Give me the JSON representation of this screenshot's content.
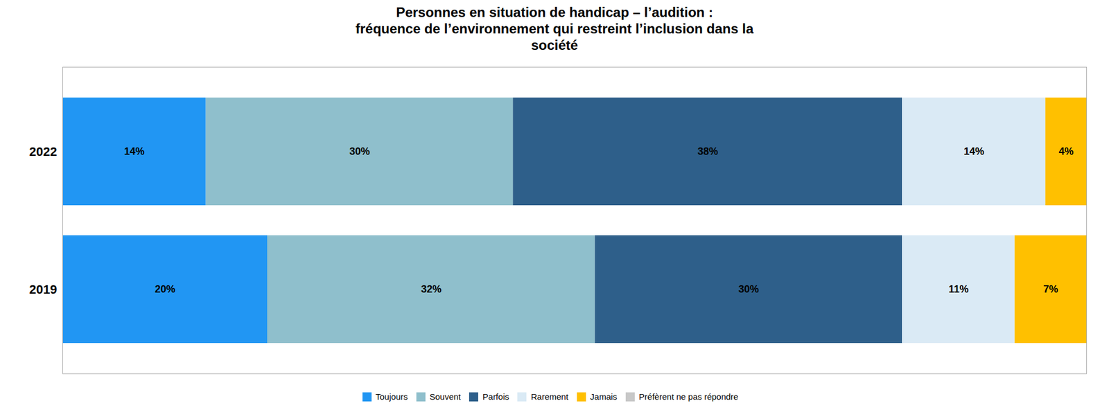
{
  "chart_data": {
    "type": "bar",
    "orientation": "horizontal",
    "stacked": true,
    "title": "Personnes en situation de handicap – l’audition :\nfréquence de l’environnement qui restreint l’inclusion dans la\nsociété",
    "categories": [
      "2022",
      "2019"
    ],
    "series": [
      {
        "name": "Toujours",
        "color": "#2196F3",
        "values": [
          14,
          20
        ],
        "value_labels": [
          "14%",
          "20%"
        ]
      },
      {
        "name": "Souvent",
        "color": "#8FBFCC",
        "values": [
          30,
          32
        ],
        "value_labels": [
          "30%",
          "32%"
        ]
      },
      {
        "name": "Parfois",
        "color": "#2E5F8A",
        "values": [
          38,
          30
        ],
        "value_labels": [
          "38%",
          "30%"
        ]
      },
      {
        "name": "Rarement",
        "color": "#DAEAF5",
        "values": [
          14,
          11
        ],
        "value_labels": [
          "14%",
          "11%"
        ]
      },
      {
        "name": "Jamais",
        "color": "#FFC000",
        "values": [
          4,
          7
        ],
        "value_labels": [
          "4%",
          "7%"
        ]
      },
      {
        "name": "Préfèrent ne pas répondre",
        "color": "#C8C8C8",
        "values": [
          0,
          0
        ],
        "value_labels": [
          null,
          null
        ]
      }
    ],
    "xlim": [
      0,
      100
    ],
    "data_labels": true,
    "tick_labels": "y",
    "legend": "bottom",
    "grid": false
  }
}
